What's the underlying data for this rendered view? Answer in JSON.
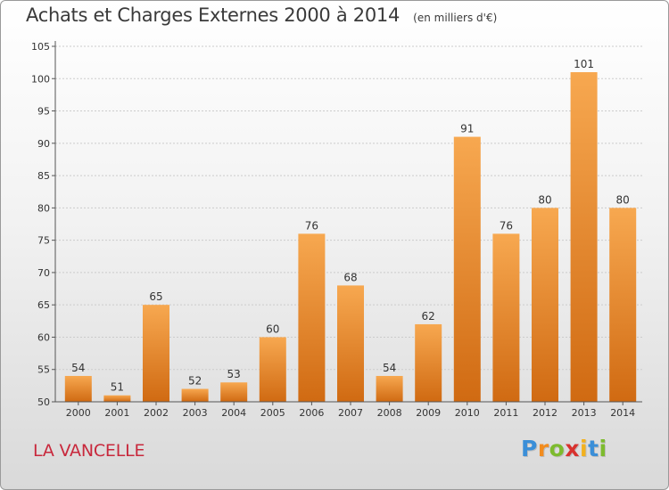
{
  "title": "Achats et Charges Externes 2000 à 2014",
  "unit": "(en milliers d'€)",
  "commune": "LA VANCELLE",
  "brand": {
    "letters": [
      "P",
      "r",
      "o",
      "x",
      "i",
      "t",
      "i"
    ],
    "colors": [
      "#3b8fd8",
      "#f28c1e",
      "#7dbb2e",
      "#d8322e",
      "#f2b11e",
      "#3b8fd8",
      "#7dbb2e"
    ]
  },
  "colors": {
    "bar_top": "#f7a850",
    "bar_bottom": "#d06a12",
    "axis": "#555555",
    "grid": "#cccccc"
  },
  "chart_data": {
    "type": "bar",
    "categories": [
      "2000",
      "2001",
      "2002",
      "2003",
      "2004",
      "2005",
      "2006",
      "2007",
      "2008",
      "2009",
      "2010",
      "2011",
      "2012",
      "2013",
      "2014"
    ],
    "values": [
      54,
      51,
      65,
      52,
      53,
      60,
      76,
      68,
      54,
      62,
      91,
      76,
      80,
      101,
      80
    ],
    "ylim": [
      50,
      105
    ],
    "yticks": [
      50,
      55,
      60,
      65,
      70,
      75,
      80,
      85,
      90,
      95,
      100,
      105
    ],
    "grid": "horizontal",
    "data_labels": true
  }
}
